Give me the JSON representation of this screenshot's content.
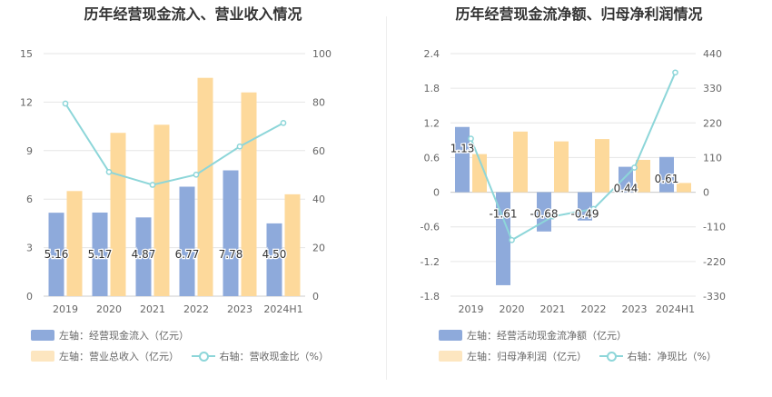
{
  "chart_data": [
    {
      "type": "bar",
      "title": "历年经营现金流入、营业收入情况",
      "categories": [
        "2019",
        "2020",
        "2021",
        "2022",
        "2023",
        "2024H1"
      ],
      "left_axis": {
        "min": 0,
        "max": 15,
        "ticks": [
          0,
          3,
          6,
          9,
          12,
          15
        ]
      },
      "right_axis": {
        "min": 0,
        "max": 100,
        "ticks": [
          0,
          20,
          40,
          60,
          80,
          100
        ]
      },
      "series": [
        {
          "name": "左轴：经营现金流入（亿元）",
          "kind": "bar",
          "axis": "left",
          "color": "#8eaadb",
          "values": [
            5.16,
            5.17,
            4.87,
            6.77,
            7.78,
            4.5
          ],
          "labels": [
            "5.16",
            "5.17",
            "4.87",
            "6.77",
            "7.78",
            "4.50"
          ]
        },
        {
          "name": "左轴：营业总收入（亿元）",
          "kind": "bar",
          "axis": "left",
          "color": "#fdd99b",
          "values": [
            6.5,
            10.1,
            10.6,
            13.5,
            12.6,
            6.3
          ]
        },
        {
          "name": "右轴：营收现金比（%）",
          "kind": "line",
          "axis": "right",
          "color": "#8dd6d9",
          "values": [
            79.4,
            51.2,
            45.9,
            50.1,
            61.7,
            71.4
          ]
        }
      ],
      "legend_position": "bottom",
      "grid": true
    },
    {
      "type": "bar",
      "title": "历年经营现金流净额、归母净利润情况",
      "categories": [
        "2019",
        "2020",
        "2021",
        "2022",
        "2023",
        "2024H1"
      ],
      "left_axis": {
        "min": -1.8,
        "max": 2.4,
        "ticks": [
          -1.8,
          -1.2,
          -0.6,
          0,
          0.6,
          1.2,
          1.8,
          2.4
        ],
        "tick_labels": [
          "-1.8",
          "-1.2",
          "-0.6",
          "0",
          "0.6",
          "1.2",
          "1.8",
          "2.4"
        ]
      },
      "right_axis": {
        "min": -330,
        "max": 440,
        "ticks": [
          -330,
          -220,
          -110,
          0,
          110,
          220,
          330,
          440
        ]
      },
      "series": [
        {
          "name": "左轴：经营活动现金流净额（亿元）",
          "kind": "bar",
          "axis": "left",
          "color": "#8eaadb",
          "values": [
            1.13,
            -1.61,
            -0.68,
            -0.49,
            0.44,
            0.61
          ],
          "labels": [
            "1.13",
            "-1.61",
            "-0.68",
            "-0.49",
            "0.44",
            "0.61"
          ]
        },
        {
          "name": "左轴：归母净利润（亿元）",
          "kind": "bar",
          "axis": "left",
          "color": "#fdd99b",
          "values": [
            0.66,
            1.05,
            0.88,
            0.92,
            0.56,
            0.16
          ]
        },
        {
          "name": "右轴：净现比（%）",
          "kind": "line",
          "axis": "right",
          "color": "#8dd6d9",
          "values": [
            170,
            -152,
            -77,
            -53,
            78,
            380
          ]
        }
      ],
      "legend_position": "bottom",
      "grid": true
    }
  ]
}
